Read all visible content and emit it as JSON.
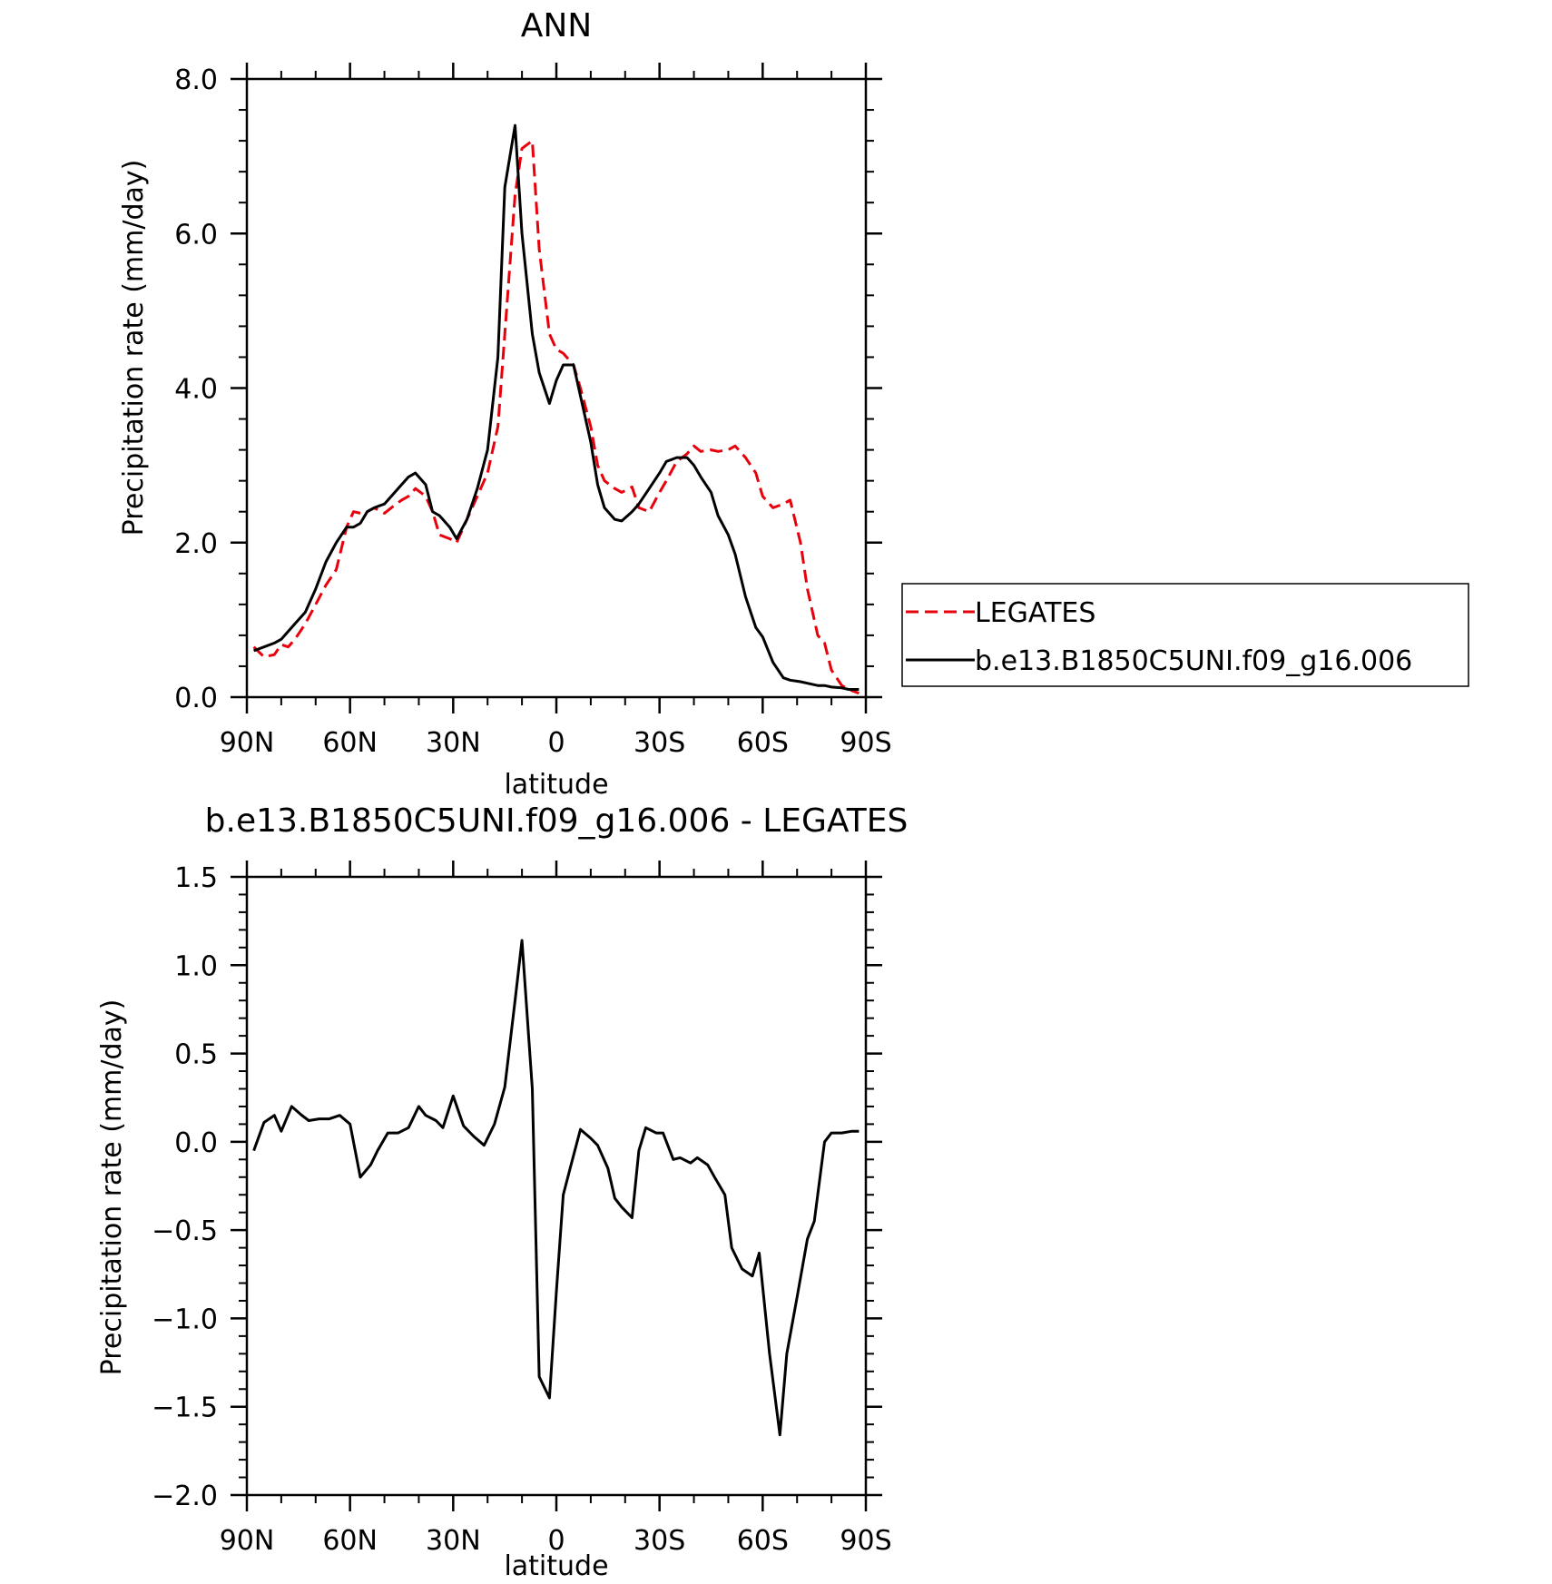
{
  "chart_data": [
    {
      "type": "line",
      "title": "ANN",
      "xlabel": "latitude",
      "ylabel": "Precipitation rate (mm/day)",
      "xlim": [
        90,
        -90
      ],
      "ylim": [
        0,
        8
      ],
      "x_ticks": [
        90,
        60,
        30,
        0,
        -30,
        -60,
        -90
      ],
      "x_tick_labels": [
        "90N",
        "60N",
        "30N",
        "0",
        "30S",
        "60S",
        "90S"
      ],
      "y_ticks": [
        0,
        2,
        4,
        6,
        8
      ],
      "y_tick_labels": [
        "0.0",
        "2.0",
        "4.0",
        "6.0",
        "8.0"
      ],
      "legend": "right",
      "series": [
        {
          "name": "LEGATES",
          "color": "#e8000b",
          "style": "dashed",
          "x": [
            88,
            85,
            82,
            80,
            78,
            76,
            73,
            70,
            67,
            64,
            61,
            59,
            57,
            55,
            53,
            50,
            48,
            45,
            43,
            41,
            38,
            36,
            34,
            31,
            29,
            26,
            23,
            20,
            17,
            15,
            12,
            10,
            7,
            5,
            2,
            0,
            -2,
            -5,
            -7,
            -10,
            -12,
            -14,
            -17,
            -19,
            -22,
            -24,
            -27,
            -30,
            -32,
            -35,
            -38,
            -40,
            -42,
            -45,
            -47,
            -50,
            -52,
            -55,
            -58,
            -60,
            -63,
            -66,
            -68,
            -71,
            -73,
            -76,
            -78,
            -80,
            -83,
            -85,
            -88
          ],
          "y": [
            0.65,
            0.52,
            0.55,
            0.68,
            0.65,
            0.75,
            0.95,
            1.2,
            1.45,
            1.65,
            2.2,
            2.4,
            2.38,
            2.4,
            2.45,
            2.38,
            2.45,
            2.55,
            2.6,
            2.7,
            2.6,
            2.4,
            2.1,
            2.05,
            2.0,
            2.3,
            2.6,
            2.9,
            3.5,
            4.7,
            6.5,
            7.1,
            7.2,
            5.8,
            4.7,
            4.5,
            4.45,
            4.3,
            4.0,
            3.5,
            3.0,
            2.8,
            2.7,
            2.65,
            2.72,
            2.45,
            2.4,
            2.65,
            2.8,
            3.05,
            3.15,
            3.25,
            3.18,
            3.2,
            3.18,
            3.2,
            3.25,
            3.1,
            2.9,
            2.6,
            2.45,
            2.5,
            2.55,
            2.0,
            1.4,
            0.8,
            0.7,
            0.35,
            0.15,
            0.1,
            0.05
          ]
        },
        {
          "name": "b.e13.B1850C5UNI.f09_g16.006",
          "color": "#000000",
          "style": "solid",
          "x": [
            88,
            85,
            82,
            80,
            78,
            76,
            73,
            70,
            67,
            64,
            61,
            59,
            57,
            55,
            53,
            50,
            48,
            45,
            43,
            41,
            38,
            36,
            34,
            31,
            29,
            26,
            23,
            20,
            17,
            15,
            12,
            10,
            7,
            5,
            2,
            0,
            -2,
            -5,
            -7,
            -10,
            -12,
            -14,
            -17,
            -19,
            -22,
            -24,
            -27,
            -30,
            -32,
            -35,
            -38,
            -40,
            -42,
            -45,
            -47,
            -50,
            -52,
            -55,
            -58,
            -60,
            -63,
            -66,
            -68,
            -71,
            -73,
            -76,
            -78,
            -80,
            -83,
            -85,
            -88
          ],
          "y": [
            0.6,
            0.65,
            0.7,
            0.75,
            0.85,
            0.95,
            1.1,
            1.4,
            1.75,
            2.0,
            2.2,
            2.2,
            2.25,
            2.4,
            2.45,
            2.5,
            2.6,
            2.75,
            2.85,
            2.9,
            2.75,
            2.4,
            2.35,
            2.2,
            2.05,
            2.3,
            2.7,
            3.2,
            4.4,
            6.6,
            7.4,
            6.0,
            4.7,
            4.2,
            3.8,
            4.1,
            4.3,
            4.3,
            3.9,
            3.3,
            2.75,
            2.45,
            2.3,
            2.28,
            2.4,
            2.5,
            2.7,
            2.9,
            3.05,
            3.1,
            3.1,
            3.0,
            2.85,
            2.65,
            2.35,
            2.1,
            1.85,
            1.3,
            0.9,
            0.78,
            0.45,
            0.25,
            0.22,
            0.2,
            0.18,
            0.15,
            0.15,
            0.13,
            0.12,
            0.1,
            0.1
          ]
        }
      ]
    },
    {
      "type": "line",
      "title": "b.e13.B1850C5UNI.f09_g16.006 - LEGATES",
      "xlabel": "latitude",
      "ylabel": "Precipitation rate (mm/day)",
      "xlim": [
        90,
        -90
      ],
      "ylim": [
        -2,
        1.5
      ],
      "x_ticks": [
        90,
        60,
        30,
        0,
        -30,
        -60,
        -90
      ],
      "x_tick_labels": [
        "90N",
        "60N",
        "30N",
        "0",
        "30S",
        "60S",
        "90S"
      ],
      "y_ticks": [
        1.5,
        1.0,
        0.5,
        0.0,
        -0.5,
        -1.0,
        -1.5,
        -2.0
      ],
      "y_tick_labels": [
        "1.5",
        "1.0",
        "0.5",
        "0.0",
        "−0.5",
        "−1.0",
        "−1.5",
        "−2.0"
      ],
      "series": [
        {
          "color": "#000000",
          "style": "solid",
          "x": [
            88,
            85,
            82,
            80,
            77,
            74,
            72,
            69,
            66,
            63,
            60,
            57,
            54,
            52,
            49,
            46,
            43,
            40,
            38,
            35,
            33,
            30,
            27,
            24,
            21,
            18,
            15,
            12,
            10,
            7,
            5,
            2,
            0,
            -2,
            -4,
            -7,
            -10,
            -12,
            -15,
            -17,
            -19,
            -22,
            -24,
            -26,
            -29,
            -31,
            -34,
            -36,
            -39,
            -41,
            -44,
            -46,
            -49,
            -51,
            -54,
            -57,
            -59,
            -62,
            -65,
            -67,
            -70,
            -73,
            -75,
            -78,
            -80,
            -83,
            -86,
            -88
          ],
          "y": [
            -0.05,
            0.11,
            0.15,
            0.06,
            0.2,
            0.15,
            0.12,
            0.13,
            0.13,
            0.15,
            0.1,
            -0.2,
            -0.13,
            -0.05,
            0.05,
            0.05,
            0.08,
            0.2,
            0.15,
            0.12,
            0.08,
            0.26,
            0.09,
            0.03,
            -0.02,
            0.1,
            0.31,
            0.8,
            1.14,
            0.3,
            -1.33,
            -1.45,
            -0.85,
            -0.3,
            -0.15,
            0.07,
            0.02,
            -0.02,
            -0.15,
            -0.32,
            -0.37,
            -0.43,
            -0.05,
            0.08,
            0.05,
            0.05,
            -0.1,
            -0.09,
            -0.12,
            -0.09,
            -0.13,
            -0.2,
            -0.3,
            -0.6,
            -0.72,
            -0.76,
            -0.63,
            -1.2,
            -1.66,
            -1.2,
            -0.88,
            -0.55,
            -0.45,
            0.0,
            0.05,
            0.05,
            0.06,
            0.06
          ]
        }
      ]
    }
  ]
}
